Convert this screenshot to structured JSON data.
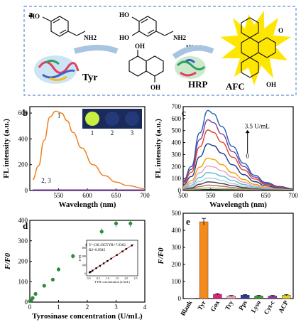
{
  "scheme": {
    "panel_label": "a",
    "tyr_label": "Tyr",
    "hrp_label": "HRP",
    "afc_label": "AFC",
    "h2o2_label": "H2O2",
    "border_color": "#5b8fd0",
    "arrow_color": "#a8c4e0",
    "afc_glow_color": "#ffe600",
    "groups": {
      "ho": "HO",
      "oh": "OH",
      "nh2": "NH2",
      "o": "O"
    }
  },
  "chart_data": [
    {
      "panel": "b",
      "type": "line",
      "xlabel": "Wavelength (nm)",
      "ylabel": "FL intensity (a.u.)",
      "xlim": [
        500,
        700
      ],
      "ylim": [
        0,
        650
      ],
      "xticks": [
        550,
        600,
        650,
        700
      ],
      "yticks": [
        0,
        200,
        400,
        600
      ],
      "inset_labels": [
        "1",
        "2",
        "3"
      ],
      "series": [
        {
          "name": "1",
          "color": "#f08020",
          "x": [
            505,
            515,
            525,
            535,
            545,
            555,
            565,
            575,
            590,
            610,
            630,
            650,
            670,
            700
          ],
          "values": [
            85,
            190,
            390,
            570,
            615,
            600,
            540,
            450,
            330,
            200,
            115,
            65,
            38,
            15
          ]
        },
        {
          "name": "2, 3",
          "color": "#7030a0",
          "x": [
            505,
            700
          ],
          "values": [
            4,
            4
          ]
        }
      ],
      "annotations": [
        "1",
        "2, 3"
      ]
    },
    {
      "panel": "c",
      "type": "line",
      "xlabel": "Wavelength (nm)",
      "ylabel": "FL intensity (a.u.)",
      "xlim": [
        500,
        700
      ],
      "ylim": [
        0,
        700
      ],
      "xticks": [
        500,
        550,
        600,
        650,
        700
      ],
      "yticks": [
        0,
        100,
        200,
        300,
        400,
        500,
        600,
        700
      ],
      "annotation_top": "3.5 U/mL",
      "annotation_bottom": "0",
      "peaks": [
        668,
        590,
        505,
        390,
        270,
        205,
        150,
        105,
        72,
        45,
        22,
        8
      ],
      "colors": [
        "#1f5fb0",
        "#7b3fa0",
        "#e0402a",
        "#1a3a8c",
        "#f0a000",
        "#e89cc0",
        "#55c0d0",
        "#b0c8e8",
        "#404040",
        "#c06060",
        "#90c060",
        "#2b2b2b"
      ]
    },
    {
      "panel": "d",
      "type": "scatter",
      "xlabel": "Tyrosinase concentration (U/mL)",
      "ylabel": "F/F0",
      "xlim": [
        0,
        4
      ],
      "ylim": [
        0,
        400
      ],
      "xticks": [
        0,
        1,
        2,
        3,
        4
      ],
      "yticks": [
        0,
        100,
        200,
        300,
        400
      ],
      "x": [
        0,
        0.05,
        0.1,
        0.2,
        0.5,
        0.8,
        1.0,
        1.5,
        2.0,
        2.5,
        3.0,
        3.5
      ],
      "y": [
        5,
        10,
        20,
        40,
        80,
        110,
        160,
        225,
        280,
        345,
        385,
        385
      ],
      "errors": [
        3,
        3,
        4,
        5,
        8,
        8,
        10,
        12,
        15,
        15,
        18,
        18
      ],
      "color": "#2e8b3a",
      "inset": {
        "equation": "Y=138.19CTYR+7.6362",
        "r2": "R2=0.9945",
        "xlabel": "TYR concentration (U/mL)",
        "ylabel": "F/F0",
        "xticks": [
          "0.0",
          "0.5",
          "1.0",
          "1.5",
          "2.0",
          "2.5"
        ],
        "yticks": [
          "0",
          "100",
          "200",
          "300"
        ],
        "x": [
          0.05,
          0.1,
          0.2,
          0.4,
          0.6,
          0.8,
          1.0,
          1.2,
          1.5,
          1.8,
          2.0,
          2.3
        ],
        "y": [
          15,
          22,
          35,
          63,
          90,
          118,
          146,
          173,
          215,
          256,
          284,
          325
        ]
      }
    },
    {
      "panel": "e",
      "type": "bar",
      "xlabel": "",
      "ylabel": "F/F0",
      "ylim": [
        0,
        500
      ],
      "yticks": [
        0,
        100,
        200,
        300,
        400,
        500
      ],
      "categories": [
        "Blank",
        "Tyr",
        "Gox",
        "Try",
        "Pps",
        "Lyso",
        "Cyt-c",
        "ACP"
      ],
      "values": [
        1,
        450,
        25,
        15,
        20,
        15,
        15,
        20
      ],
      "errors": [
        0,
        20,
        4,
        3,
        3,
        3,
        3,
        3
      ],
      "colors": [
        "#ffffff",
        "#f28a1e",
        "#e0207a",
        "#f0a0b8",
        "#2a3a9c",
        "#3a9a3a",
        "#8a3aa0",
        "#e8d020"
      ]
    }
  ],
  "panel_labels": [
    "b",
    "c",
    "d",
    "e"
  ]
}
